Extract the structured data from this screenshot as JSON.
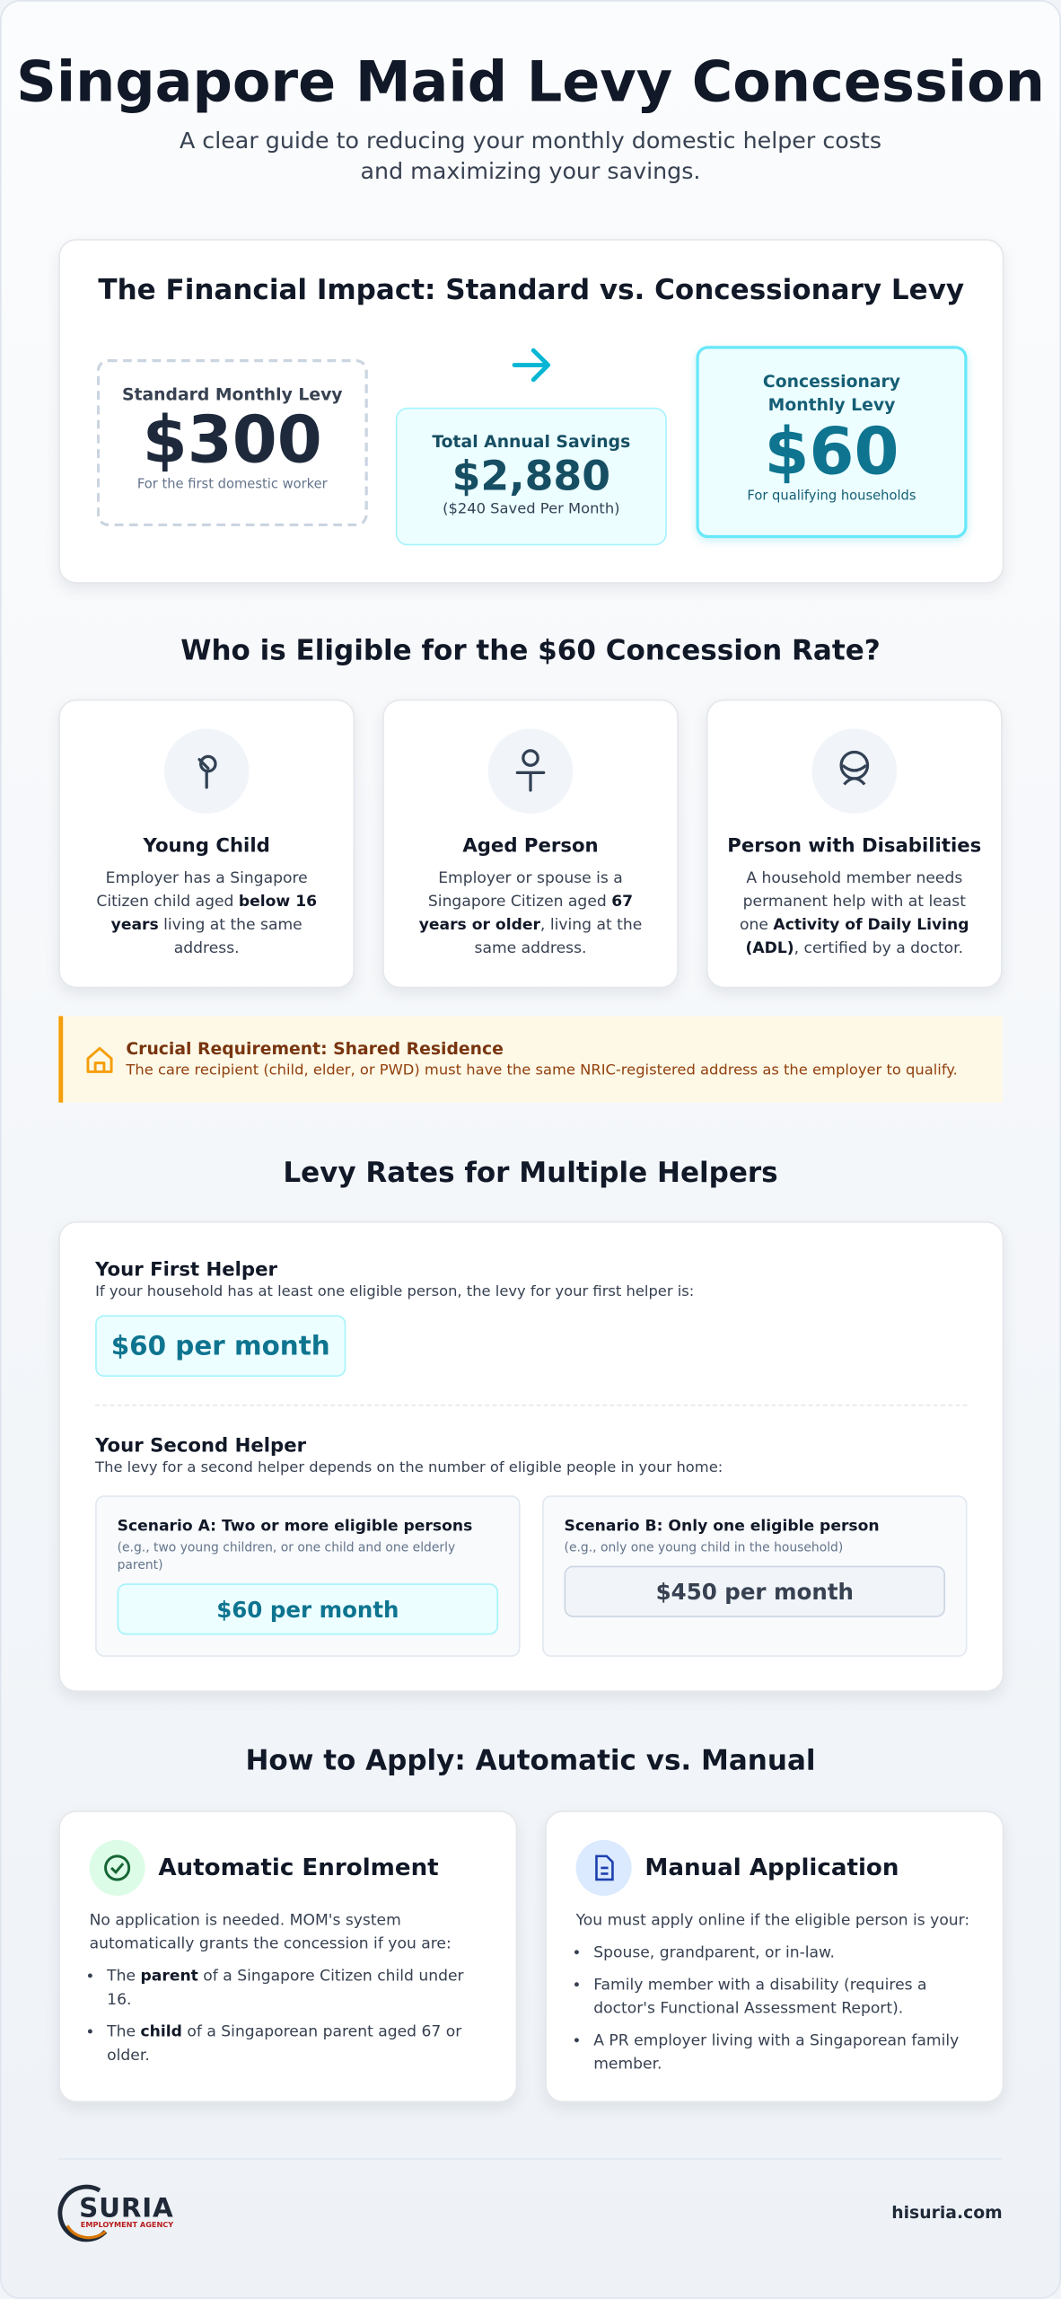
{
  "header": {
    "title": "Singapore Maid Levy Concession",
    "subtitle": "A clear guide to reducing your monthly domestic helper costs and maximizing your savings."
  },
  "impact": {
    "title": "The Financial Impact: Standard vs. Concessionary Levy",
    "standard": {
      "label": "Standard Monthly Levy",
      "amount": "$300",
      "note": "For the first domestic worker"
    },
    "savings": {
      "label": "Total Annual Savings",
      "amount": "$2,880",
      "note": "($240 Saved Per Month)"
    },
    "concession": {
      "label": "Concessionary Monthly Levy",
      "amount": "$60",
      "note": "For qualifying households"
    }
  },
  "eligibility": {
    "title": "Who is Eligible for the $60 Concession Rate?",
    "cards": [
      {
        "title": "Young Child",
        "description": [
          {
            "text": "Employer has a Singapore Citizen child aged ",
            "bold": false
          },
          {
            "text": "below 16 years",
            "bold": true
          },
          {
            "text": " living at the same address.",
            "bold": false
          }
        ]
      },
      {
        "title": "Aged Person",
        "description": [
          {
            "text": "Employer or spouse is a Singapore Citizen aged ",
            "bold": false
          },
          {
            "text": "67 years or older",
            "bold": true
          },
          {
            "text": ", living at the same address.",
            "bold": false
          }
        ]
      },
      {
        "title": "Person with Disabilities",
        "description": [
          {
            "text": "A household member needs permanent help with at least one ",
            "bold": false
          },
          {
            "text": "Activity of Daily Living (ADL)",
            "bold": true
          },
          {
            "text": ", certified by a doctor.",
            "bold": false
          }
        ]
      }
    ]
  },
  "notice": {
    "title": "Crucial Requirement: Shared Residence",
    "text": "The care recipient (child, elder, or PWD) must have the same NRIC-registered address as the employer to qualify."
  },
  "rates": {
    "title": "Levy Rates for Multiple Helpers",
    "first": {
      "title": "Your First Helper",
      "text": "If your household has at least one eligible person, the levy for your first helper is:",
      "rate": "$60 per month"
    },
    "second": {
      "title": "Your Second Helper",
      "text": "The levy for a second helper depends on the number of eligible people in your home:",
      "scenarios": [
        {
          "title": "Scenario A: Two or more eligible persons",
          "example": "(e.g., two young children, or one child and one elderly parent)",
          "rate": "$60 per month"
        },
        {
          "title": "Scenario B: Only one eligible person",
          "example": "(e.g., only one young child in the household)",
          "rate": "$450 per month"
        }
      ]
    }
  },
  "apply": {
    "title": "How to Apply: Automatic vs. Manual",
    "cards": [
      {
        "title": "Automatic Enrolment",
        "intro": "No application is needed. MOM's system automatically grants the concession if you are:",
        "items": [
          [
            {
              "text": "The ",
              "bold": false
            },
            {
              "text": "parent",
              "bold": true
            },
            {
              "text": " of a Singapore Citizen child under 16.",
              "bold": false
            }
          ],
          [
            {
              "text": "The ",
              "bold": false
            },
            {
              "text": "child",
              "bold": true
            },
            {
              "text": " of a Singaporean parent aged 67 or older.",
              "bold": false
            }
          ]
        ]
      },
      {
        "title": "Manual Application",
        "intro": "You must apply online if the eligible person is your:",
        "items": [
          [
            {
              "text": "Spouse, grandparent, or in-law.",
              "bold": false
            }
          ],
          [
            {
              "text": "Family member with a disability (requires a doctor's Functional Assessment Report).",
              "bold": false
            }
          ],
          [
            {
              "text": "A PR employer living with a Singaporean family member.",
              "bold": false
            }
          ]
        ]
      }
    ]
  },
  "footer": {
    "logo": "SURIA",
    "logo_sub": "EMPLOYMENT AGENCY",
    "site": "hisuria.com"
  }
}
